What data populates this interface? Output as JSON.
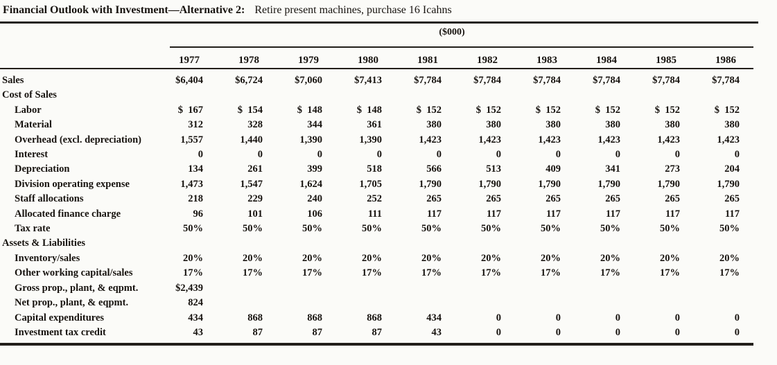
{
  "title": {
    "bold": "Financial Outlook with Investment—Alternative 2:",
    "rest": "Retire present machines, purchase 16 Icahns"
  },
  "units_label": "($000)",
  "table": {
    "years": [
      "1977",
      "1978",
      "1979",
      "1980",
      "1981",
      "1982",
      "1983",
      "1984",
      "1985",
      "1986"
    ],
    "rows": [
      {
        "label": "Sales",
        "indent": 0,
        "values": [
          "$6,404",
          "$6,724",
          "$7,060",
          "$7,413",
          "$7,784",
          "$7,784",
          "$7,784",
          "$7,784",
          "$7,784",
          "$7,784"
        ]
      },
      {
        "label": "Cost of Sales",
        "indent": 0,
        "values": [
          "",
          "",
          "",
          "",
          "",
          "",
          "",
          "",
          "",
          ""
        ]
      },
      {
        "label": "Labor",
        "indent": 1,
        "values": [
          "$  167",
          "$  154",
          "$  148",
          "$  148",
          "$  152",
          "$  152",
          "$  152",
          "$  152",
          "$  152",
          "$  152"
        ]
      },
      {
        "label": "Material",
        "indent": 1,
        "values": [
          "312",
          "328",
          "344",
          "361",
          "380",
          "380",
          "380",
          "380",
          "380",
          "380"
        ]
      },
      {
        "label": "Overhead (excl. depreciation)",
        "indent": 1,
        "values": [
          "1,557",
          "1,440",
          "1,390",
          "1,390",
          "1,423",
          "1,423",
          "1,423",
          "1,423",
          "1,423",
          "1,423"
        ]
      },
      {
        "label": "Interest",
        "indent": 1,
        "values": [
          "0",
          "0",
          "0",
          "0",
          "0",
          "0",
          "0",
          "0",
          "0",
          "0"
        ]
      },
      {
        "label": "Depreciation",
        "indent": 1,
        "values": [
          "134",
          "261",
          "399",
          "518",
          "566",
          "513",
          "409",
          "341",
          "273",
          "204"
        ]
      },
      {
        "label": "Division operating expense",
        "indent": 1,
        "values": [
          "1,473",
          "1,547",
          "1,624",
          "1,705",
          "1,790",
          "1,790",
          "1,790",
          "1,790",
          "1,790",
          "1,790"
        ]
      },
      {
        "label": "Staff allocations",
        "indent": 1,
        "values": [
          "218",
          "229",
          "240",
          "252",
          "265",
          "265",
          "265",
          "265",
          "265",
          "265"
        ]
      },
      {
        "label": "Allocated finance charge",
        "indent": 1,
        "values": [
          "96",
          "101",
          "106",
          "111",
          "117",
          "117",
          "117",
          "117",
          "117",
          "117"
        ]
      },
      {
        "label": "Tax rate",
        "indent": 1,
        "values": [
          "50%",
          "50%",
          "50%",
          "50%",
          "50%",
          "50%",
          "50%",
          "50%",
          "50%",
          "50%"
        ]
      },
      {
        "label": "Assets & Liabilities",
        "indent": 0,
        "values": [
          "",
          "",
          "",
          "",
          "",
          "",
          "",
          "",
          "",
          ""
        ]
      },
      {
        "label": "Inventory/sales",
        "indent": 1,
        "values": [
          "20%",
          "20%",
          "20%",
          "20%",
          "20%",
          "20%",
          "20%",
          "20%",
          "20%",
          "20%"
        ]
      },
      {
        "label": "Other working capital/sales",
        "indent": 1,
        "values": [
          "17%",
          "17%",
          "17%",
          "17%",
          "17%",
          "17%",
          "17%",
          "17%",
          "17%",
          "17%"
        ]
      },
      {
        "label": "Gross prop., plant, & eqpmt.",
        "indent": 1,
        "values": [
          "$2,439",
          "",
          "",
          "",
          "",
          "",
          "",
          "",
          "",
          ""
        ]
      },
      {
        "label": "Net prop., plant, & eqpmt.",
        "indent": 1,
        "values": [
          "824",
          "",
          "",
          "",
          "",
          "",
          "",
          "",
          "",
          ""
        ]
      },
      {
        "label": "Capital expenditures",
        "indent": 1,
        "values": [
          "434",
          "868",
          "868",
          "868",
          "434",
          "0",
          "0",
          "0",
          "0",
          "0"
        ]
      },
      {
        "label": "Investment tax credit",
        "indent": 1,
        "values": [
          "43",
          "87",
          "87",
          "87",
          "43",
          "0",
          "0",
          "0",
          "0",
          "0"
        ]
      }
    ]
  },
  "colors": {
    "text": "#17130f",
    "rule": "#221e1a",
    "paper": "#fbfbf8"
  }
}
